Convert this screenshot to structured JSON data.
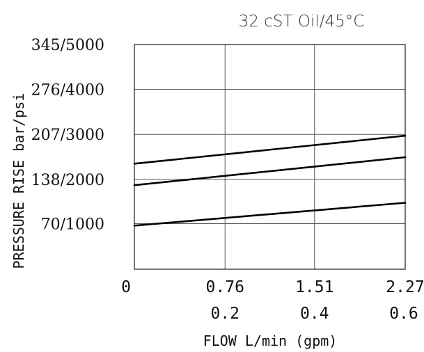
{
  "chart_data": {
    "type": "line",
    "title": "32 cST Oil/45°C",
    "xlabel": "FLOW L/min (gpm)",
    "ylabel": "PRESSURE RISE  bar/psi",
    "x_ticks_primary": [
      "0",
      "0.76",
      "1.51",
      "2.27"
    ],
    "x_ticks_secondary": [
      "0.2",
      "0.4",
      "0.6"
    ],
    "y_ticks": [
      "70/1000",
      "138/2000",
      "207/3000",
      "276/4000",
      "345/5000"
    ],
    "xlim": [
      0,
      2.27
    ],
    "ylim": [
      0,
      345
    ],
    "x_tick_values": [
      0,
      0.76,
      1.51,
      2.27
    ],
    "y_tick_values": [
      70,
      138,
      207,
      276,
      345
    ],
    "grid": true,
    "series": [
      {
        "x": [
          0,
          2.27
        ],
        "y": [
          162,
          205
        ]
      },
      {
        "x": [
          0,
          2.27
        ],
        "y": [
          129,
          172
        ]
      },
      {
        "x": [
          0,
          2.27
        ],
        "y": [
          67,
          102
        ]
      }
    ]
  }
}
